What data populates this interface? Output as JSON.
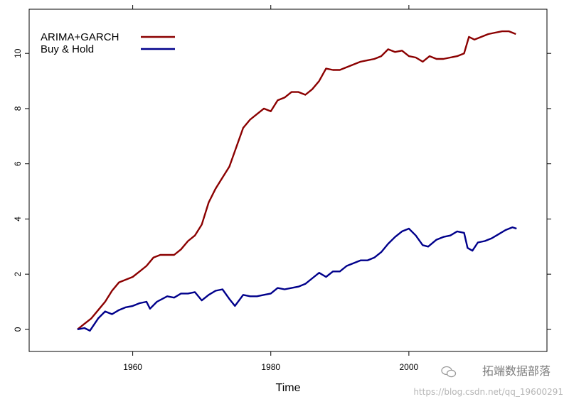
{
  "chart_data": {
    "type": "line",
    "xlabel": "Time",
    "ylabel": "",
    "xlim": [
      1945,
      2020
    ],
    "ylim": [
      -0.8,
      11.6
    ],
    "x_ticks": [
      1960,
      1980,
      2000
    ],
    "y_ticks": [
      0,
      2,
      4,
      6,
      8,
      10
    ],
    "legend_position": "top-left",
    "grid": false,
    "series": [
      {
        "name": "ARIMA+GARCH",
        "color": "#8b0000",
        "points": [
          [
            1952.0,
            0.0
          ],
          [
            1953.0,
            0.2
          ],
          [
            1954.0,
            0.4
          ],
          [
            1955.0,
            0.7
          ],
          [
            1956.0,
            1.0
          ],
          [
            1957.0,
            1.4
          ],
          [
            1958.0,
            1.7
          ],
          [
            1959.0,
            1.8
          ],
          [
            1960.0,
            1.9
          ],
          [
            1961.0,
            2.1
          ],
          [
            1962.0,
            2.3
          ],
          [
            1963.0,
            2.6
          ],
          [
            1964.0,
            2.7
          ],
          [
            1965.0,
            2.7
          ],
          [
            1966.0,
            2.7
          ],
          [
            1967.0,
            2.9
          ],
          [
            1968.0,
            3.2
          ],
          [
            1969.0,
            3.4
          ],
          [
            1970.0,
            3.8
          ],
          [
            1971.0,
            4.6
          ],
          [
            1972.0,
            5.1
          ],
          [
            1973.0,
            5.5
          ],
          [
            1974.0,
            5.9
          ],
          [
            1975.0,
            6.6
          ],
          [
            1976.0,
            7.3
          ],
          [
            1977.0,
            7.6
          ],
          [
            1978.0,
            7.8
          ],
          [
            1979.0,
            8.0
          ],
          [
            1980.0,
            7.9
          ],
          [
            1981.0,
            8.3
          ],
          [
            1982.0,
            8.4
          ],
          [
            1983.0,
            8.6
          ],
          [
            1984.0,
            8.6
          ],
          [
            1985.0,
            8.5
          ],
          [
            1986.0,
            8.7
          ],
          [
            1987.0,
            9.0
          ],
          [
            1988.0,
            9.45
          ],
          [
            1989.0,
            9.4
          ],
          [
            1990.0,
            9.4
          ],
          [
            1991.0,
            9.5
          ],
          [
            1992.0,
            9.6
          ],
          [
            1993.0,
            9.7
          ],
          [
            1994.0,
            9.75
          ],
          [
            1995.0,
            9.8
          ],
          [
            1996.0,
            9.9
          ],
          [
            1997.0,
            10.15
          ],
          [
            1998.0,
            10.05
          ],
          [
            1999.0,
            10.1
          ],
          [
            2000.0,
            9.9
          ],
          [
            2001.0,
            9.85
          ],
          [
            2002.0,
            9.7
          ],
          [
            2003.0,
            9.9
          ],
          [
            2004.0,
            9.8
          ],
          [
            2005.0,
            9.8
          ],
          [
            2006.0,
            9.85
          ],
          [
            2007.0,
            9.9
          ],
          [
            2008.0,
            10.0
          ],
          [
            2008.7,
            10.6
          ],
          [
            2009.5,
            10.5
          ],
          [
            2010.5,
            10.6
          ],
          [
            2011.5,
            10.7
          ],
          [
            2012.5,
            10.75
          ],
          [
            2013.5,
            10.8
          ],
          [
            2014.5,
            10.8
          ],
          [
            2015.5,
            10.7
          ]
        ]
      },
      {
        "name": "Buy & Hold",
        "color": "#00008b",
        "points": [
          [
            1952.0,
            0.0
          ],
          [
            1953.0,
            0.05
          ],
          [
            1953.8,
            -0.05
          ],
          [
            1955.0,
            0.4
          ],
          [
            1956.0,
            0.65
          ],
          [
            1957.0,
            0.55
          ],
          [
            1958.0,
            0.7
          ],
          [
            1959.0,
            0.8
          ],
          [
            1960.0,
            0.85
          ],
          [
            1961.0,
            0.95
          ],
          [
            1962.0,
            1.0
          ],
          [
            1962.5,
            0.75
          ],
          [
            1963.5,
            1.0
          ],
          [
            1965.0,
            1.2
          ],
          [
            1966.0,
            1.15
          ],
          [
            1967.0,
            1.3
          ],
          [
            1968.0,
            1.3
          ],
          [
            1969.0,
            1.35
          ],
          [
            1970.0,
            1.05
          ],
          [
            1971.0,
            1.25
          ],
          [
            1972.0,
            1.4
          ],
          [
            1973.0,
            1.45
          ],
          [
            1974.0,
            1.1
          ],
          [
            1974.8,
            0.85
          ],
          [
            1976.0,
            1.25
          ],
          [
            1977.0,
            1.2
          ],
          [
            1978.0,
            1.2
          ],
          [
            1979.0,
            1.25
          ],
          [
            1980.0,
            1.3
          ],
          [
            1981.0,
            1.5
          ],
          [
            1982.0,
            1.45
          ],
          [
            1983.0,
            1.5
          ],
          [
            1984.0,
            1.55
          ],
          [
            1985.0,
            1.65
          ],
          [
            1986.0,
            1.85
          ],
          [
            1987.0,
            2.05
          ],
          [
            1988.0,
            1.9
          ],
          [
            1989.0,
            2.1
          ],
          [
            1990.0,
            2.1
          ],
          [
            1991.0,
            2.3
          ],
          [
            1992.0,
            2.4
          ],
          [
            1993.0,
            2.5
          ],
          [
            1994.0,
            2.5
          ],
          [
            1995.0,
            2.6
          ],
          [
            1996.0,
            2.8
          ],
          [
            1997.0,
            3.1
          ],
          [
            1998.0,
            3.35
          ],
          [
            1999.0,
            3.55
          ],
          [
            2000.0,
            3.65
          ],
          [
            2001.0,
            3.4
          ],
          [
            2002.0,
            3.05
          ],
          [
            2002.8,
            3.0
          ],
          [
            2004.0,
            3.25
          ],
          [
            2005.0,
            3.35
          ],
          [
            2006.0,
            3.4
          ],
          [
            2007.0,
            3.55
          ],
          [
            2008.0,
            3.5
          ],
          [
            2008.5,
            2.95
          ],
          [
            2009.2,
            2.85
          ],
          [
            2010.0,
            3.15
          ],
          [
            2011.0,
            3.2
          ],
          [
            2012.0,
            3.3
          ],
          [
            2013.0,
            3.45
          ],
          [
            2014.0,
            3.6
          ],
          [
            2015.0,
            3.7
          ],
          [
            2015.6,
            3.65
          ]
        ]
      }
    ]
  },
  "watermark": {
    "brand": "拓端数据部落",
    "url": "https://blog.csdn.net/qq_19600291"
  }
}
